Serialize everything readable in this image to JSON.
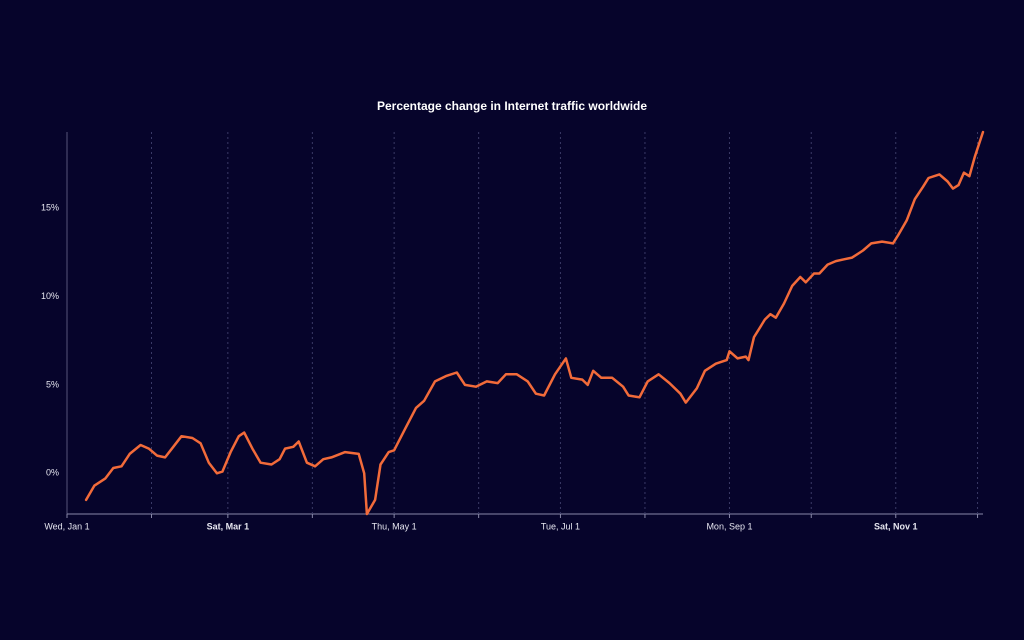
{
  "chart_data": {
    "type": "line",
    "title": "Percentage change in Internet traffic worldwide",
    "background": "#06042b",
    "x": [
      7,
      10,
      14,
      17,
      20,
      23,
      27,
      30,
      33,
      36,
      39,
      42,
      46,
      49,
      52,
      55,
      57,
      60,
      63,
      65,
      68,
      71,
      75,
      78,
      80,
      83,
      85,
      88,
      91,
      94,
      97,
      102,
      107,
      109,
      110,
      113,
      115,
      118,
      120,
      124,
      128,
      131,
      135,
      139,
      143,
      146,
      150,
      154,
      158,
      161,
      165,
      169,
      172,
      175,
      179,
      183,
      185,
      189,
      191,
      193,
      196,
      200,
      204,
      206,
      210,
      213,
      217,
      221,
      225,
      227,
      231,
      234,
      238,
      242,
      243,
      246,
      249,
      250,
      252,
      256,
      258,
      260,
      263,
      266,
      269,
      271,
      274,
      276,
      279,
      282,
      285,
      288,
      292,
      295,
      299,
      303,
      305,
      308,
      311,
      314,
      316,
      320,
      323,
      325,
      327,
      329,
      331,
      333,
      336
    ],
    "series": [
      {
        "name": "Internet traffic",
        "color": "#f26b3a",
        "values": [
          -1.5,
          -0.7,
          -0.3,
          0.3,
          0.4,
          1.1,
          1.6,
          1.4,
          1.0,
          0.9,
          1.5,
          2.1,
          2.0,
          1.7,
          0.6,
          0.0,
          0.1,
          1.2,
          2.1,
          2.3,
          1.4,
          0.6,
          0.5,
          0.8,
          1.4,
          1.5,
          1.8,
          0.6,
          0.4,
          0.8,
          0.9,
          1.2,
          1.1,
          0.0,
          -2.3,
          -1.5,
          0.5,
          1.2,
          1.3,
          2.5,
          3.7,
          4.1,
          5.2,
          5.5,
          5.7,
          5.0,
          4.9,
          5.2,
          5.1,
          5.6,
          5.6,
          5.2,
          4.5,
          4.4,
          5.6,
          6.5,
          5.4,
          5.3,
          5.0,
          5.8,
          5.4,
          5.4,
          4.9,
          4.4,
          4.3,
          5.2,
          5.6,
          5.1,
          4.5,
          4.0,
          4.8,
          5.8,
          6.2,
          6.4,
          6.9,
          6.5,
          6.6,
          6.4,
          7.7,
          8.7,
          9.0,
          8.8,
          9.6,
          10.6,
          11.1,
          10.8,
          11.3,
          11.3,
          11.8,
          12.0,
          12.1,
          12.2,
          12.6,
          13.0,
          13.1,
          13.0,
          13.5,
          14.3,
          15.5,
          16.2,
          16.7,
          16.9,
          16.5,
          16.1,
          16.3,
          17.0,
          16.8,
          17.9,
          19.3
        ]
      }
    ],
    "xlim": [
      0,
      336
    ],
    "xticks": [
      {
        "value": 0,
        "label": "Wed, Jan 1"
      },
      {
        "value": 31,
        "label": null
      },
      {
        "value": 59,
        "label": "Sat, Mar 1"
      },
      {
        "value": 90,
        "label": null
      },
      {
        "value": 120,
        "label": "Thu, May 1"
      },
      {
        "value": 151,
        "label": null
      },
      {
        "value": 181,
        "label": "Tue, Jul 1"
      },
      {
        "value": 212,
        "label": null
      },
      {
        "value": 243,
        "label": "Mon, Sep 1"
      },
      {
        "value": 273,
        "label": null
      },
      {
        "value": 304,
        "label": "Sat, Nov 1"
      },
      {
        "value": 334,
        "label": null
      }
    ],
    "ylim": [
      -2.3,
      19.3
    ],
    "yticks": [
      {
        "value": 0,
        "label": "0%"
      },
      {
        "value": 5,
        "label": "5%"
      },
      {
        "value": 10,
        "label": "10%"
      },
      {
        "value": 15,
        "label": "15%"
      }
    ],
    "grid": true
  }
}
